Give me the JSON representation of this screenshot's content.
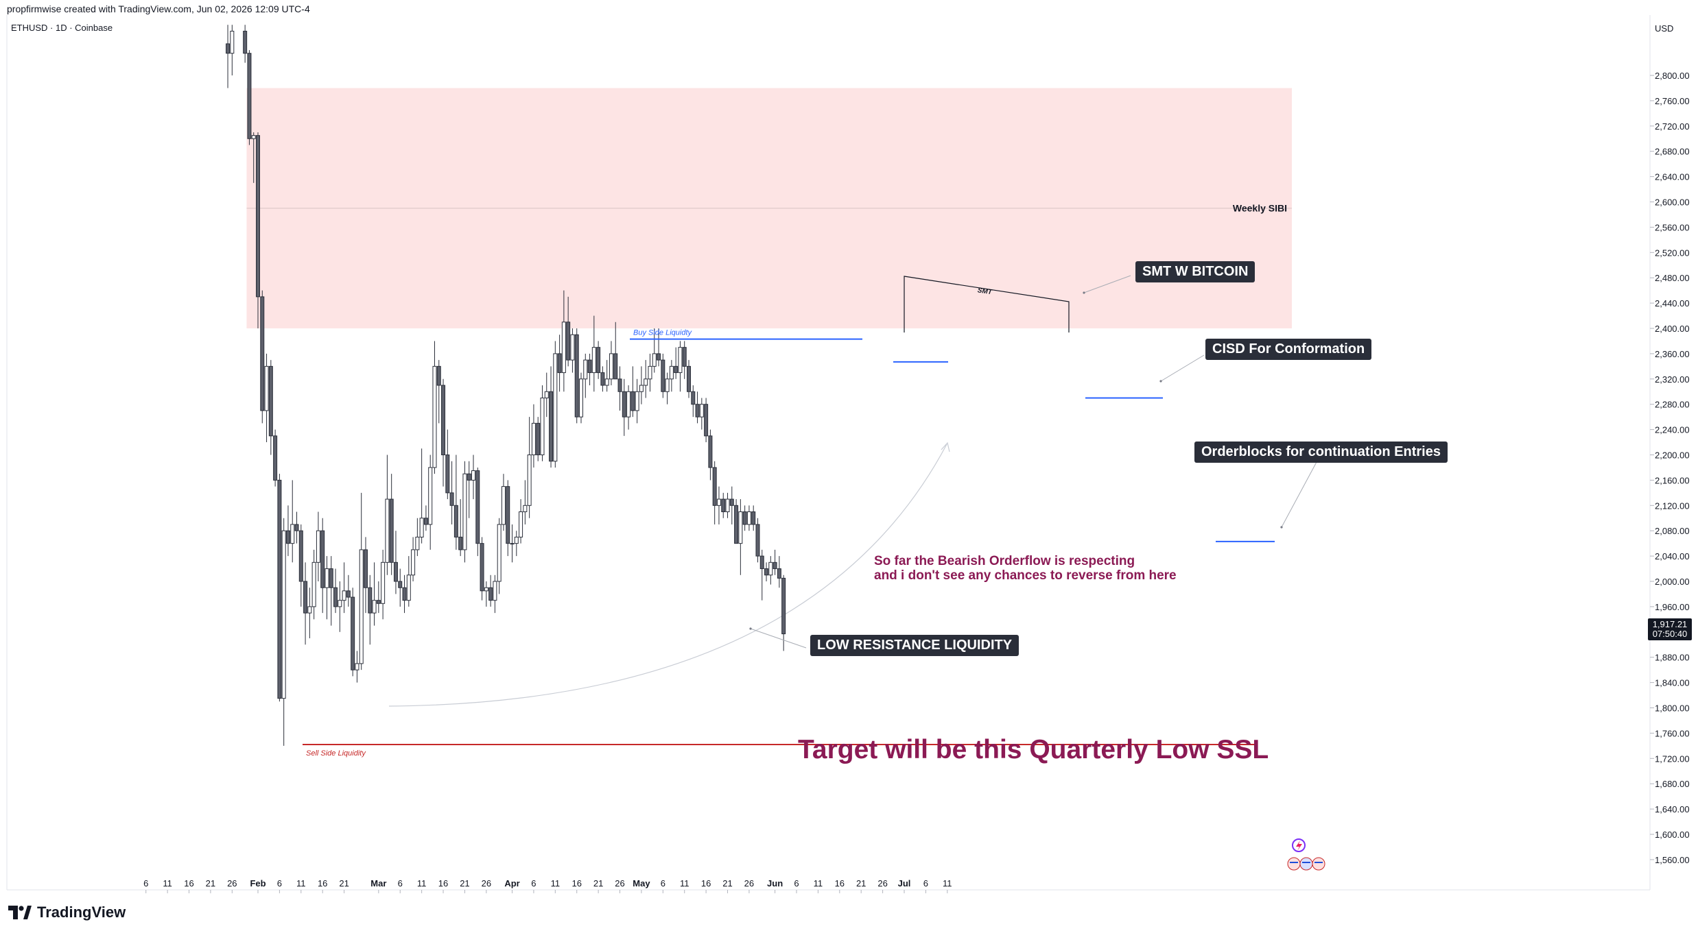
{
  "header": {
    "created_by": "propfirmwise created with TradingView.com, Jun 02, 2026 12:09 UTC-4",
    "symbol": "ETHUSD · 1D · Coinbase",
    "currency": "USD"
  },
  "brand": {
    "name": "TradingView"
  },
  "price_tag": {
    "price": "1,917.21",
    "countdown": "07:50:40"
  },
  "annotations": {
    "weekly_sibi": "Weekly SIBI",
    "smt_small": "SMT",
    "smt_bitcoin": "SMT W BITCOIN",
    "cisd": "CISD For Conformation",
    "orderblocks": "Orderblocks for continuation Entries",
    "bearish_line1": "So far the Bearish Orderflow is respecting",
    "bearish_line2": "and i don't see any chances to reverse from here",
    "low_resistance": "LOW RESISTANCE LIQUIDITY",
    "buy_side": "Buy Side Liquidty",
    "sell_side": "Sell Side Liquidity",
    "target": "Target will be this Quarterly Low SSL"
  },
  "colors": {
    "zone_fill": "#fde4e4",
    "buy_side_line": "#2962ff",
    "sell_side_line": "#c62828",
    "annotation_text": "#8b1a54",
    "label_bg": "#2a2e39",
    "bull_candle": "#ffffff",
    "bear_candle": "#5d606b"
  },
  "chart_data": {
    "type": "candlestick",
    "ylim": [
      1520,
      2880
    ],
    "y_ticks": [
      1560,
      1600,
      1640,
      1680,
      1720,
      1760,
      1800,
      1840,
      1880,
      1960,
      2000,
      2040,
      2080,
      2120,
      2160,
      2200,
      2240,
      2280,
      2320,
      2360,
      2400,
      2440,
      2480,
      2520,
      2560,
      2600,
      2640,
      2680,
      2720,
      2760,
      2800
    ],
    "x_ticks": [
      {
        "label": "6",
        "d": -26
      },
      {
        "label": "11",
        "d": -21
      },
      {
        "label": "16",
        "d": -16
      },
      {
        "label": "21",
        "d": -11
      },
      {
        "label": "26",
        "d": -6
      },
      {
        "label": "Feb",
        "d": 0,
        "bold": true
      },
      {
        "label": "6",
        "d": 5
      },
      {
        "label": "11",
        "d": 10
      },
      {
        "label": "16",
        "d": 15
      },
      {
        "label": "21",
        "d": 20
      },
      {
        "label": "Mar",
        "d": 28,
        "bold": true
      },
      {
        "label": "6",
        "d": 33
      },
      {
        "label": "11",
        "d": 38
      },
      {
        "label": "16",
        "d": 43
      },
      {
        "label": "21",
        "d": 48
      },
      {
        "label": "26",
        "d": 53
      },
      {
        "label": "Apr",
        "d": 59,
        "bold": true
      },
      {
        "label": "6",
        "d": 64
      },
      {
        "label": "11",
        "d": 69
      },
      {
        "label": "16",
        "d": 74
      },
      {
        "label": "21",
        "d": 79
      },
      {
        "label": "26",
        "d": 84
      },
      {
        "label": "May",
        "d": 89,
        "bold": true
      },
      {
        "label": "6",
        "d": 94
      },
      {
        "label": "11",
        "d": 99
      },
      {
        "label": "16",
        "d": 104
      },
      {
        "label": "21",
        "d": 109
      },
      {
        "label": "26",
        "d": 114
      },
      {
        "label": "Jun",
        "d": 120,
        "bold": true
      },
      {
        "label": "6",
        "d": 125
      },
      {
        "label": "11",
        "d": 130
      },
      {
        "label": "16",
        "d": 135
      },
      {
        "label": "21",
        "d": 140
      },
      {
        "label": "26",
        "d": 145
      },
      {
        "label": "Jul",
        "d": 150,
        "bold": true
      },
      {
        "label": "6",
        "d": 155
      },
      {
        "label": "11",
        "d": 160
      }
    ],
    "candles": [
      {
        "d": -7,
        "o": 2850,
        "h": 2880,
        "l": 2780,
        "c": 2835
      },
      {
        "d": -6,
        "o": 2835,
        "h": 2880,
        "l": 2800,
        "c": 2870
      },
      {
        "d": -3,
        "o": 2870,
        "h": 2880,
        "l": 2820,
        "c": 2835
      },
      {
        "d": -2,
        "o": 2835,
        "h": 2840,
        "l": 2690,
        "c": 2700
      },
      {
        "d": -1,
        "o": 2700,
        "h": 2710,
        "l": 2630,
        "c": 2705
      },
      {
        "d": 0,
        "o": 2705,
        "h": 2710,
        "l": 2400,
        "c": 2450
      },
      {
        "d": 1,
        "o": 2450,
        "h": 2460,
        "l": 2250,
        "c": 2270
      },
      {
        "d": 2,
        "o": 2270,
        "h": 2360,
        "l": 2220,
        "c": 2340
      },
      {
        "d": 3,
        "o": 2340,
        "h": 2350,
        "l": 2200,
        "c": 2230
      },
      {
        "d": 4,
        "o": 2230,
        "h": 2240,
        "l": 2150,
        "c": 2160
      },
      {
        "d": 5,
        "o": 2160,
        "h": 2170,
        "l": 1810,
        "c": 1815
      },
      {
        "d": 6,
        "o": 1815,
        "h": 2100,
        "l": 1740,
        "c": 2080
      },
      {
        "d": 7,
        "o": 2080,
        "h": 2120,
        "l": 2040,
        "c": 2060
      },
      {
        "d": 8,
        "o": 2060,
        "h": 2160,
        "l": 2030,
        "c": 2090
      },
      {
        "d": 9,
        "o": 2090,
        "h": 2110,
        "l": 2060,
        "c": 2080
      },
      {
        "d": 10,
        "o": 2080,
        "h": 2090,
        "l": 1960,
        "c": 2000
      },
      {
        "d": 11,
        "o": 2000,
        "h": 2030,
        "l": 1900,
        "c": 1950
      },
      {
        "d": 12,
        "o": 1950,
        "h": 1990,
        "l": 1910,
        "c": 1960
      },
      {
        "d": 13,
        "o": 1960,
        "h": 2050,
        "l": 1940,
        "c": 2030
      },
      {
        "d": 14,
        "o": 2030,
        "h": 2110,
        "l": 2000,
        "c": 2080
      },
      {
        "d": 15,
        "o": 2080,
        "h": 2100,
        "l": 1950,
        "c": 1990
      },
      {
        "d": 16,
        "o": 1990,
        "h": 2040,
        "l": 1940,
        "c": 2020
      },
      {
        "d": 17,
        "o": 2020,
        "h": 2040,
        "l": 1930,
        "c": 1990
      },
      {
        "d": 18,
        "o": 1990,
        "h": 2020,
        "l": 1950,
        "c": 1960
      },
      {
        "d": 19,
        "o": 1960,
        "h": 2000,
        "l": 1920,
        "c": 1970
      },
      {
        "d": 20,
        "o": 1970,
        "h": 2030,
        "l": 1950,
        "c": 1985
      },
      {
        "d": 21,
        "o": 1985,
        "h": 2010,
        "l": 1960,
        "c": 1975
      },
      {
        "d": 22,
        "o": 1975,
        "h": 1990,
        "l": 1850,
        "c": 1860
      },
      {
        "d": 23,
        "o": 1860,
        "h": 1890,
        "l": 1840,
        "c": 1870
      },
      {
        "d": 24,
        "o": 1870,
        "h": 2140,
        "l": 1860,
        "c": 2050
      },
      {
        "d": 25,
        "o": 2050,
        "h": 2070,
        "l": 1950,
        "c": 1990
      },
      {
        "d": 26,
        "o": 1990,
        "h": 2010,
        "l": 1900,
        "c": 1950
      },
      {
        "d": 27,
        "o": 1950,
        "h": 2030,
        "l": 1930,
        "c": 1970
      },
      {
        "d": 28,
        "o": 1970,
        "h": 2000,
        "l": 1950,
        "c": 1965
      },
      {
        "d": 29,
        "o": 1965,
        "h": 2050,
        "l": 1940,
        "c": 2030
      },
      {
        "d": 30,
        "o": 2030,
        "h": 2200,
        "l": 2010,
        "c": 2130
      },
      {
        "d": 31,
        "o": 2130,
        "h": 2170,
        "l": 2010,
        "c": 2030
      },
      {
        "d": 32,
        "o": 2030,
        "h": 2080,
        "l": 1980,
        "c": 2000
      },
      {
        "d": 33,
        "o": 2000,
        "h": 2020,
        "l": 1960,
        "c": 1990
      },
      {
        "d": 34,
        "o": 1990,
        "h": 2010,
        "l": 1950,
        "c": 1970
      },
      {
        "d": 35,
        "o": 1970,
        "h": 2040,
        "l": 1960,
        "c": 2010
      },
      {
        "d": 36,
        "o": 2010,
        "h": 2070,
        "l": 2000,
        "c": 2050
      },
      {
        "d": 37,
        "o": 2050,
        "h": 2100,
        "l": 2040,
        "c": 2070
      },
      {
        "d": 38,
        "o": 2070,
        "h": 2210,
        "l": 2060,
        "c": 2100
      },
      {
        "d": 39,
        "o": 2100,
        "h": 2120,
        "l": 2080,
        "c": 2090
      },
      {
        "d": 40,
        "o": 2090,
        "h": 2200,
        "l": 2050,
        "c": 2180
      },
      {
        "d": 41,
        "o": 2180,
        "h": 2380,
        "l": 2170,
        "c": 2340
      },
      {
        "d": 42,
        "o": 2340,
        "h": 2350,
        "l": 2250,
        "c": 2310
      },
      {
        "d": 43,
        "o": 2310,
        "h": 2320,
        "l": 2150,
        "c": 2200
      },
      {
        "d": 44,
        "o": 2200,
        "h": 2240,
        "l": 2130,
        "c": 2140
      },
      {
        "d": 45,
        "o": 2140,
        "h": 2190,
        "l": 2090,
        "c": 2120
      },
      {
        "d": 46,
        "o": 2120,
        "h": 2200,
        "l": 2050,
        "c": 2070
      },
      {
        "d": 47,
        "o": 2070,
        "h": 2130,
        "l": 2040,
        "c": 2050
      },
      {
        "d": 48,
        "o": 2050,
        "h": 2190,
        "l": 2030,
        "c": 2170
      },
      {
        "d": 49,
        "o": 2170,
        "h": 2190,
        "l": 2100,
        "c": 2160
      },
      {
        "d": 50,
        "o": 2160,
        "h": 2200,
        "l": 2130,
        "c": 2175
      },
      {
        "d": 51,
        "o": 2175,
        "h": 2180,
        "l": 2040,
        "c": 2060
      },
      {
        "d": 52,
        "o": 2060,
        "h": 2070,
        "l": 1970,
        "c": 1985
      },
      {
        "d": 53,
        "o": 1985,
        "h": 2000,
        "l": 1960,
        "c": 1990
      },
      {
        "d": 54,
        "o": 1990,
        "h": 2010,
        "l": 1960,
        "c": 1970
      },
      {
        "d": 55,
        "o": 1970,
        "h": 2010,
        "l": 1950,
        "c": 2000
      },
      {
        "d": 56,
        "o": 2000,
        "h": 2100,
        "l": 1980,
        "c": 2090
      },
      {
        "d": 57,
        "o": 2090,
        "h": 2170,
        "l": 2080,
        "c": 2150
      },
      {
        "d": 58,
        "o": 2150,
        "h": 2160,
        "l": 2040,
        "c": 2060
      },
      {
        "d": 59,
        "o": 2060,
        "h": 2090,
        "l": 2030,
        "c": 2060
      },
      {
        "d": 60,
        "o": 2060,
        "h": 2080,
        "l": 2040,
        "c": 2070
      },
      {
        "d": 61,
        "o": 2070,
        "h": 2130,
        "l": 2060,
        "c": 2110
      },
      {
        "d": 62,
        "o": 2110,
        "h": 2160,
        "l": 2090,
        "c": 2120
      },
      {
        "d": 63,
        "o": 2120,
        "h": 2260,
        "l": 2100,
        "c": 2200
      },
      {
        "d": 64,
        "o": 2200,
        "h": 2280,
        "l": 2180,
        "c": 2250
      },
      {
        "d": 65,
        "o": 2250,
        "h": 2260,
        "l": 2190,
        "c": 2200
      },
      {
        "d": 66,
        "o": 2200,
        "h": 2310,
        "l": 2190,
        "c": 2290
      },
      {
        "d": 67,
        "o": 2290,
        "h": 2330,
        "l": 2260,
        "c": 2300
      },
      {
        "d": 68,
        "o": 2300,
        "h": 2340,
        "l": 2180,
        "c": 2190
      },
      {
        "d": 69,
        "o": 2190,
        "h": 2380,
        "l": 2180,
        "c": 2360
      },
      {
        "d": 70,
        "o": 2360,
        "h": 2390,
        "l": 2300,
        "c": 2330
      },
      {
        "d": 71,
        "o": 2330,
        "h": 2460,
        "l": 2300,
        "c": 2410
      },
      {
        "d": 72,
        "o": 2410,
        "h": 2450,
        "l": 2340,
        "c": 2350
      },
      {
        "d": 73,
        "o": 2350,
        "h": 2400,
        "l": 2330,
        "c": 2390
      },
      {
        "d": 74,
        "o": 2390,
        "h": 2400,
        "l": 2250,
        "c": 2260
      },
      {
        "d": 75,
        "o": 2260,
        "h": 2330,
        "l": 2250,
        "c": 2320
      },
      {
        "d": 76,
        "o": 2320,
        "h": 2360,
        "l": 2290,
        "c": 2350
      },
      {
        "d": 77,
        "o": 2350,
        "h": 2360,
        "l": 2310,
        "c": 2330
      },
      {
        "d": 78,
        "o": 2330,
        "h": 2420,
        "l": 2300,
        "c": 2370
      },
      {
        "d": 79,
        "o": 2370,
        "h": 2380,
        "l": 2320,
        "c": 2330
      },
      {
        "d": 80,
        "o": 2330,
        "h": 2340,
        "l": 2300,
        "c": 2310
      },
      {
        "d": 81,
        "o": 2310,
        "h": 2350,
        "l": 2300,
        "c": 2320
      },
      {
        "d": 82,
        "o": 2320,
        "h": 2380,
        "l": 2310,
        "c": 2360
      },
      {
        "d": 83,
        "o": 2360,
        "h": 2410,
        "l": 2320,
        "c": 2320
      },
      {
        "d": 84,
        "o": 2320,
        "h": 2340,
        "l": 2270,
        "c": 2300
      },
      {
        "d": 85,
        "o": 2300,
        "h": 2320,
        "l": 2230,
        "c": 2260
      },
      {
        "d": 86,
        "o": 2260,
        "h": 2310,
        "l": 2240,
        "c": 2300
      },
      {
        "d": 87,
        "o": 2300,
        "h": 2340,
        "l": 2260,
        "c": 2270
      },
      {
        "d": 88,
        "o": 2270,
        "h": 2320,
        "l": 2250,
        "c": 2300
      },
      {
        "d": 89,
        "o": 2300,
        "h": 2340,
        "l": 2280,
        "c": 2310
      },
      {
        "d": 90,
        "o": 2310,
        "h": 2350,
        "l": 2290,
        "c": 2320
      },
      {
        "d": 91,
        "o": 2320,
        "h": 2360,
        "l": 2300,
        "c": 2340
      },
      {
        "d": 92,
        "o": 2340,
        "h": 2400,
        "l": 2330,
        "c": 2360
      },
      {
        "d": 93,
        "o": 2360,
        "h": 2400,
        "l": 2340,
        "c": 2350
      },
      {
        "d": 94,
        "o": 2350,
        "h": 2360,
        "l": 2290,
        "c": 2300
      },
      {
        "d": 95,
        "o": 2300,
        "h": 2330,
        "l": 2280,
        "c": 2320
      },
      {
        "d": 96,
        "o": 2320,
        "h": 2350,
        "l": 2300,
        "c": 2340
      },
      {
        "d": 97,
        "o": 2340,
        "h": 2370,
        "l": 2320,
        "c": 2330
      },
      {
        "d": 98,
        "o": 2330,
        "h": 2380,
        "l": 2300,
        "c": 2370
      },
      {
        "d": 99,
        "o": 2370,
        "h": 2380,
        "l": 2320,
        "c": 2340
      },
      {
        "d": 100,
        "o": 2340,
        "h": 2350,
        "l": 2290,
        "c": 2300
      },
      {
        "d": 101,
        "o": 2300,
        "h": 2310,
        "l": 2260,
        "c": 2280
      },
      {
        "d": 102,
        "o": 2280,
        "h": 2300,
        "l": 2250,
        "c": 2260
      },
      {
        "d": 103,
        "o": 2260,
        "h": 2290,
        "l": 2240,
        "c": 2280
      },
      {
        "d": 104,
        "o": 2280,
        "h": 2290,
        "l": 2220,
        "c": 2230
      },
      {
        "d": 105,
        "o": 2230,
        "h": 2240,
        "l": 2160,
        "c": 2180
      },
      {
        "d": 106,
        "o": 2180,
        "h": 2190,
        "l": 2090,
        "c": 2120
      },
      {
        "d": 107,
        "o": 2120,
        "h": 2150,
        "l": 2090,
        "c": 2130
      },
      {
        "d": 108,
        "o": 2130,
        "h": 2140,
        "l": 2100,
        "c": 2110
      },
      {
        "d": 109,
        "o": 2110,
        "h": 2140,
        "l": 2100,
        "c": 2130
      },
      {
        "d": 110,
        "o": 2130,
        "h": 2150,
        "l": 2090,
        "c": 2120
      },
      {
        "d": 111,
        "o": 2120,
        "h": 2130,
        "l": 2060,
        "c": 2060
      },
      {
        "d": 112,
        "o": 2060,
        "h": 2130,
        "l": 2010,
        "c": 2110
      },
      {
        "d": 113,
        "o": 2110,
        "h": 2120,
        "l": 2080,
        "c": 2090
      },
      {
        "d": 114,
        "o": 2090,
        "h": 2120,
        "l": 2080,
        "c": 2110
      },
      {
        "d": 115,
        "o": 2110,
        "h": 2120,
        "l": 2080,
        "c": 2090
      },
      {
        "d": 116,
        "o": 2090,
        "h": 2100,
        "l": 2030,
        "c": 2040
      },
      {
        "d": 117,
        "o": 2040,
        "h": 2050,
        "l": 1970,
        "c": 2020
      },
      {
        "d": 118,
        "o": 2020,
        "h": 2030,
        "l": 2000,
        "c": 2010
      },
      {
        "d": 119,
        "o": 2010,
        "h": 2040,
        "l": 1995,
        "c": 2030
      },
      {
        "d": 120,
        "o": 2030,
        "h": 2050,
        "l": 2010,
        "c": 2020
      },
      {
        "d": 121,
        "o": 2020,
        "h": 2040,
        "l": 1990,
        "c": 2005
      },
      {
        "d": 122,
        "o": 2005,
        "h": 2010,
        "l": 1890,
        "c": 1917
      }
    ]
  }
}
